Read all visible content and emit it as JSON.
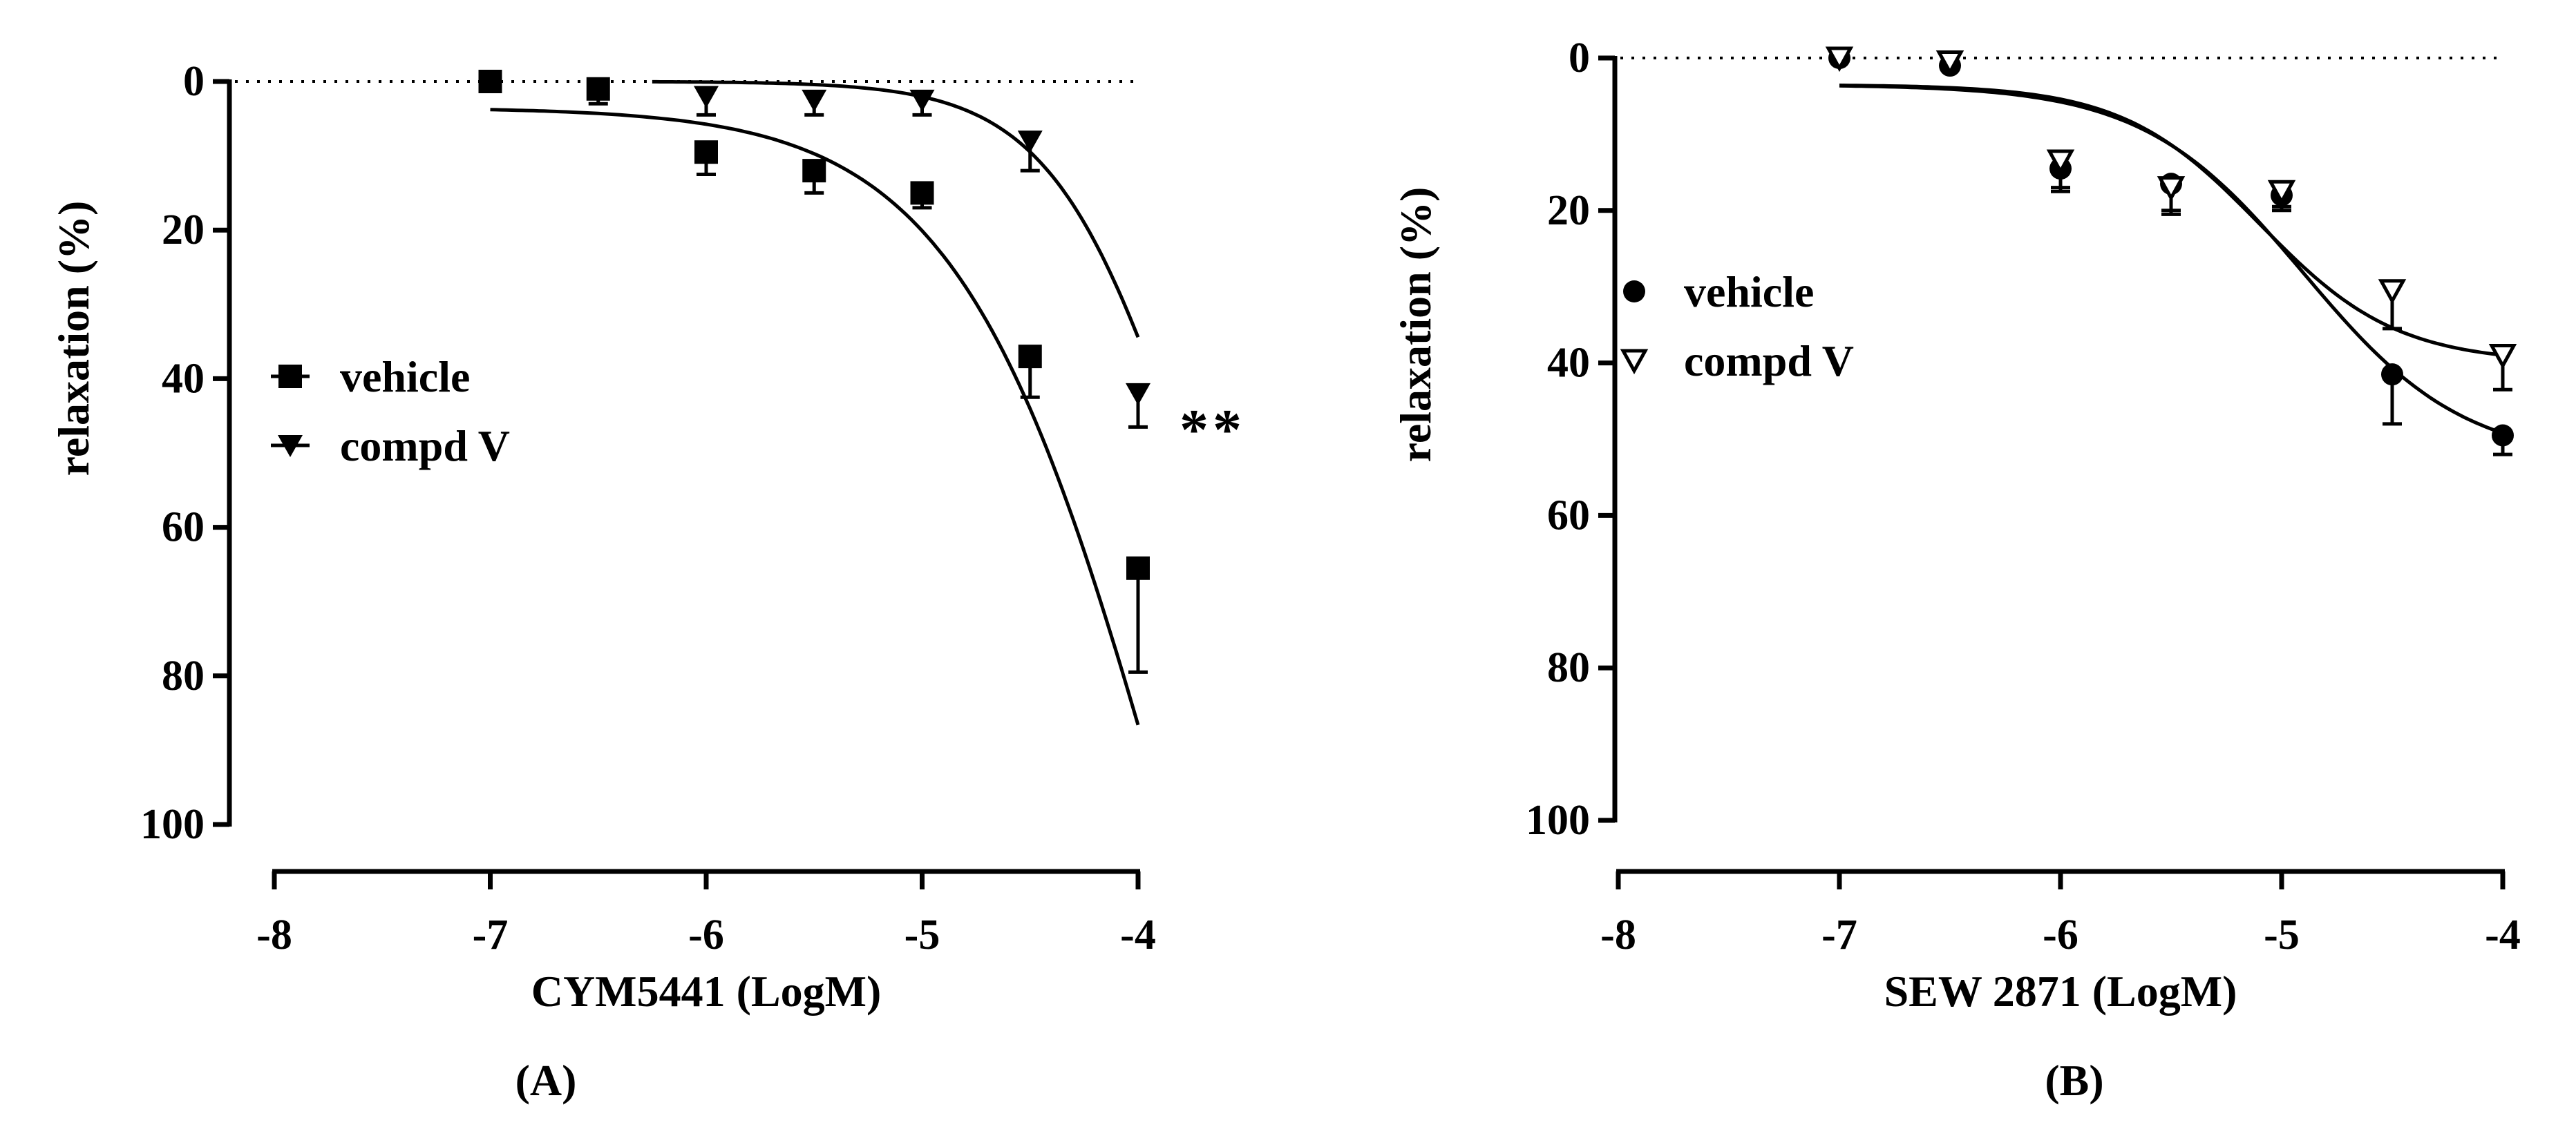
{
  "chart_data": [
    {
      "type": "scatter",
      "panel_label": "(A)",
      "xlabel": "CYM5441 (LogM)",
      "ylabel": "relaxation (%)",
      "xlim": [
        -8,
        -4
      ],
      "ylim": [
        0,
        100
      ],
      "y_inverted": true,
      "xticks": [
        "-8",
        "-7",
        "-6",
        "-5",
        "-4"
      ],
      "yticks": [
        "0",
        "20",
        "40",
        "60",
        "80",
        "100"
      ],
      "reference_line": {
        "y": 0,
        "style": "dotted"
      },
      "legend_position": "center-left",
      "annotation": {
        "text": "**",
        "x": -4,
        "y": 46
      },
      "series": [
        {
          "name": "vehicle",
          "marker": "square-filled",
          "x": [
            -7,
            -6.5,
            -6,
            -5.5,
            -5,
            -4.5,
            -4
          ],
          "y": [
            0,
            1,
            9.5,
            12,
            15,
            37,
            65.5
          ],
          "error": [
            0,
            2,
            3,
            3,
            2,
            5.5,
            14
          ],
          "fit": {
            "bottom": 3.5,
            "top": 200,
            "logEC50": -3.85,
            "hill": 0.9,
            "x_from": -7,
            "x_to": -4
          }
        },
        {
          "name": "compd V",
          "marker": "triangle-down-filled",
          "x": [
            -6,
            -5.5,
            -5,
            -4.5,
            -4
          ],
          "y": [
            2,
            2.5,
            2.5,
            8,
            42
          ],
          "error": [
            2.5,
            2,
            2,
            4,
            4.5
          ],
          "fit": {
            "bottom": 0,
            "top": 100,
            "logEC50": -3.8,
            "hill": 1.4,
            "x_from": -6.25,
            "x_to": -4
          }
        }
      ]
    },
    {
      "type": "scatter",
      "panel_label": "(B)",
      "xlabel": "SEW 2871 (LogM)",
      "ylabel": "relaxation (%)",
      "xlim": [
        -8,
        -4
      ],
      "ylim": [
        0,
        100
      ],
      "y_inverted": true,
      "xticks": [
        "-8",
        "-7",
        "-6",
        "-5",
        "-4"
      ],
      "yticks": [
        "0",
        "20",
        "40",
        "60",
        "80",
        "100"
      ],
      "reference_line": {
        "y": 0,
        "style": "dotted"
      },
      "legend_position": "upper-left",
      "series": [
        {
          "name": "vehicle",
          "marker": "circle-filled",
          "x": [
            -7,
            -6.5,
            -6,
            -5.5,
            -5,
            -4.5,
            -4
          ],
          "y": [
            0,
            1,
            14.5,
            16.5,
            18,
            41.5,
            49.5
          ],
          "error": [
            0,
            0.5,
            3,
            3.5,
            2,
            6.5,
            2.5
          ],
          "fit": {
            "bottom": 3.5,
            "top": 53,
            "logEC50": -4.9,
            "hill": 1.2,
            "x_from": -7,
            "x_to": -4
          }
        },
        {
          "name": "compd V",
          "marker": "triangle-down-open",
          "x": [
            -7,
            -6.5,
            -6,
            -5.5,
            -5,
            -4.5,
            -4
          ],
          "y": [
            0,
            0.5,
            13.5,
            17,
            17.5,
            30.5,
            39
          ],
          "error": [
            0,
            0.5,
            3.5,
            3.5,
            2,
            5,
            4.5
          ],
          "fit": {
            "bottom": 3.5,
            "top": 40,
            "logEC50": -5.1,
            "hill": 1.4,
            "x_from": -7,
            "x_to": -4
          }
        }
      ]
    }
  ]
}
